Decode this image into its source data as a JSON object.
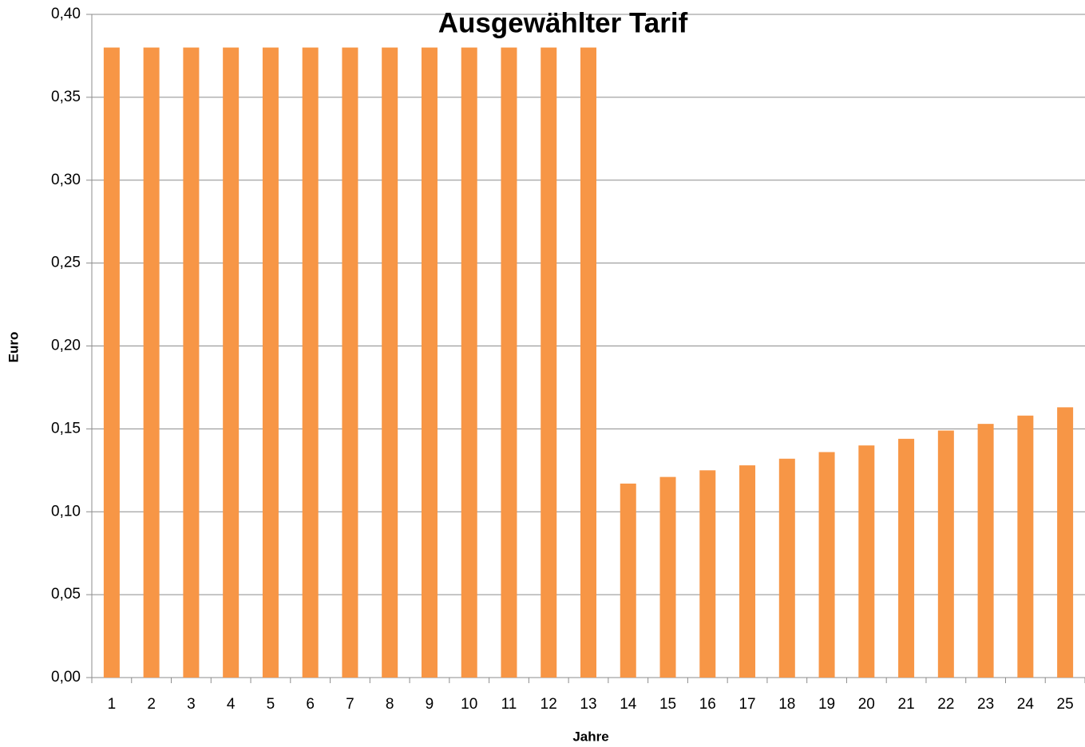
{
  "chart_data": {
    "type": "bar",
    "title": "Ausgewählter Tarif",
    "x_label": "Jahre",
    "y_label": "Euro",
    "categories": [
      "1",
      "2",
      "3",
      "4",
      "5",
      "6",
      "7",
      "8",
      "9",
      "10",
      "11",
      "12",
      "13",
      "14",
      "15",
      "16",
      "17",
      "18",
      "19",
      "20",
      "21",
      "22",
      "23",
      "24",
      "25"
    ],
    "values": [
      0.38,
      0.38,
      0.38,
      0.38,
      0.38,
      0.38,
      0.38,
      0.38,
      0.38,
      0.38,
      0.38,
      0.38,
      0.38,
      0.117,
      0.121,
      0.125,
      0.128,
      0.132,
      0.136,
      0.14,
      0.144,
      0.149,
      0.153,
      0.158,
      0.163
    ],
    "color": "#f79646",
    "ylim": [
      0,
      0.4
    ],
    "yticks": [
      {
        "value": 0,
        "label": "0,00"
      },
      {
        "value": 0.05,
        "label": "0,05"
      },
      {
        "value": 0.1,
        "label": "0,10"
      },
      {
        "value": 0.15,
        "label": "0,15"
      },
      {
        "value": 0.2,
        "label": "0,20"
      },
      {
        "value": 0.25,
        "label": "0,25"
      },
      {
        "value": 0.3,
        "label": "0,30"
      },
      {
        "value": 0.35,
        "label": "0,35"
      },
      {
        "value": 0.4,
        "label": "0,40"
      }
    ],
    "grid": true
  }
}
